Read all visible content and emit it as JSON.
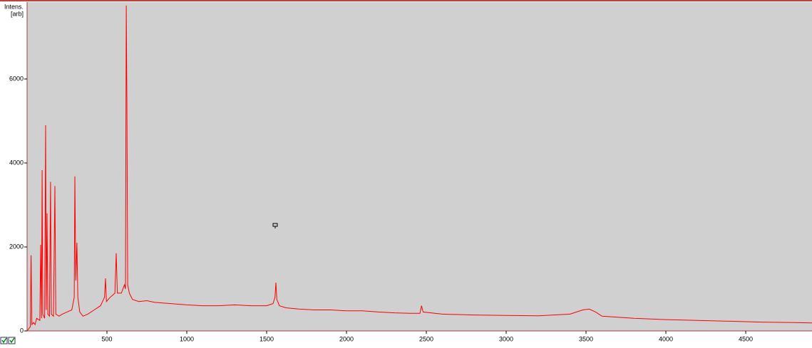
{
  "chart_data": {
    "type": "line",
    "ylabel": "Intens.",
    "yunit": "[arb]",
    "color": "#ff0000",
    "background": "#d0d0d0",
    "xlim": [
      0,
      4915
    ],
    "ylim": [
      0,
      7830
    ],
    "xticks": [
      500,
      1000,
      1500,
      2000,
      2500,
      3000,
      3500,
      4000,
      4500
    ],
    "yticks": [
      0,
      2000,
      4000,
      6000
    ],
    "x": [
      0,
      20,
      25,
      30,
      40,
      50,
      60,
      80,
      85,
      90,
      94,
      98,
      110,
      116,
      120,
      125,
      130,
      140,
      147,
      152,
      165,
      174,
      180,
      200,
      220,
      250,
      280,
      295,
      299,
      305,
      312,
      318,
      330,
      350,
      380,
      420,
      460,
      485,
      491,
      497,
      520,
      550,
      558,
      565,
      590,
      610,
      616,
      621,
      625,
      630,
      640,
      660,
      700,
      750,
      800,
      900,
      1000,
      1100,
      1200,
      1300,
      1400,
      1500,
      1540,
      1552,
      1558,
      1564,
      1580,
      1620,
      1700,
      1800,
      1900,
      2000,
      2100,
      2200,
      2300,
      2400,
      2460,
      2470,
      2480,
      2600,
      2800,
      3000,
      3200,
      3400,
      3480,
      3520,
      3560,
      3600,
      3800,
      4000,
      4200,
      4400,
      4600,
      4800,
      4915
    ],
    "values": [
      0,
      100,
      1800,
      150,
      200,
      150,
      300,
      250,
      2050,
      300,
      3830,
      400,
      300,
      4900,
      500,
      2800,
      400,
      350,
      3550,
      400,
      350,
      3450,
      400,
      350,
      400,
      450,
      500,
      800,
      3680,
      1200,
      2100,
      800,
      450,
      350,
      400,
      500,
      600,
      800,
      1250,
      700,
      800,
      900,
      1850,
      900,
      900,
      1100,
      1000,
      7750,
      5500,
      1100,
      900,
      750,
      700,
      720,
      680,
      650,
      620,
      600,
      600,
      620,
      600,
      600,
      650,
      800,
      1150,
      750,
      600,
      550,
      520,
      500,
      500,
      480,
      480,
      450,
      430,
      420,
      420,
      600,
      450,
      400,
      380,
      370,
      360,
      400,
      500,
      520,
      450,
      350,
      300,
      270,
      250,
      230,
      210,
      200,
      190
    ]
  }
}
